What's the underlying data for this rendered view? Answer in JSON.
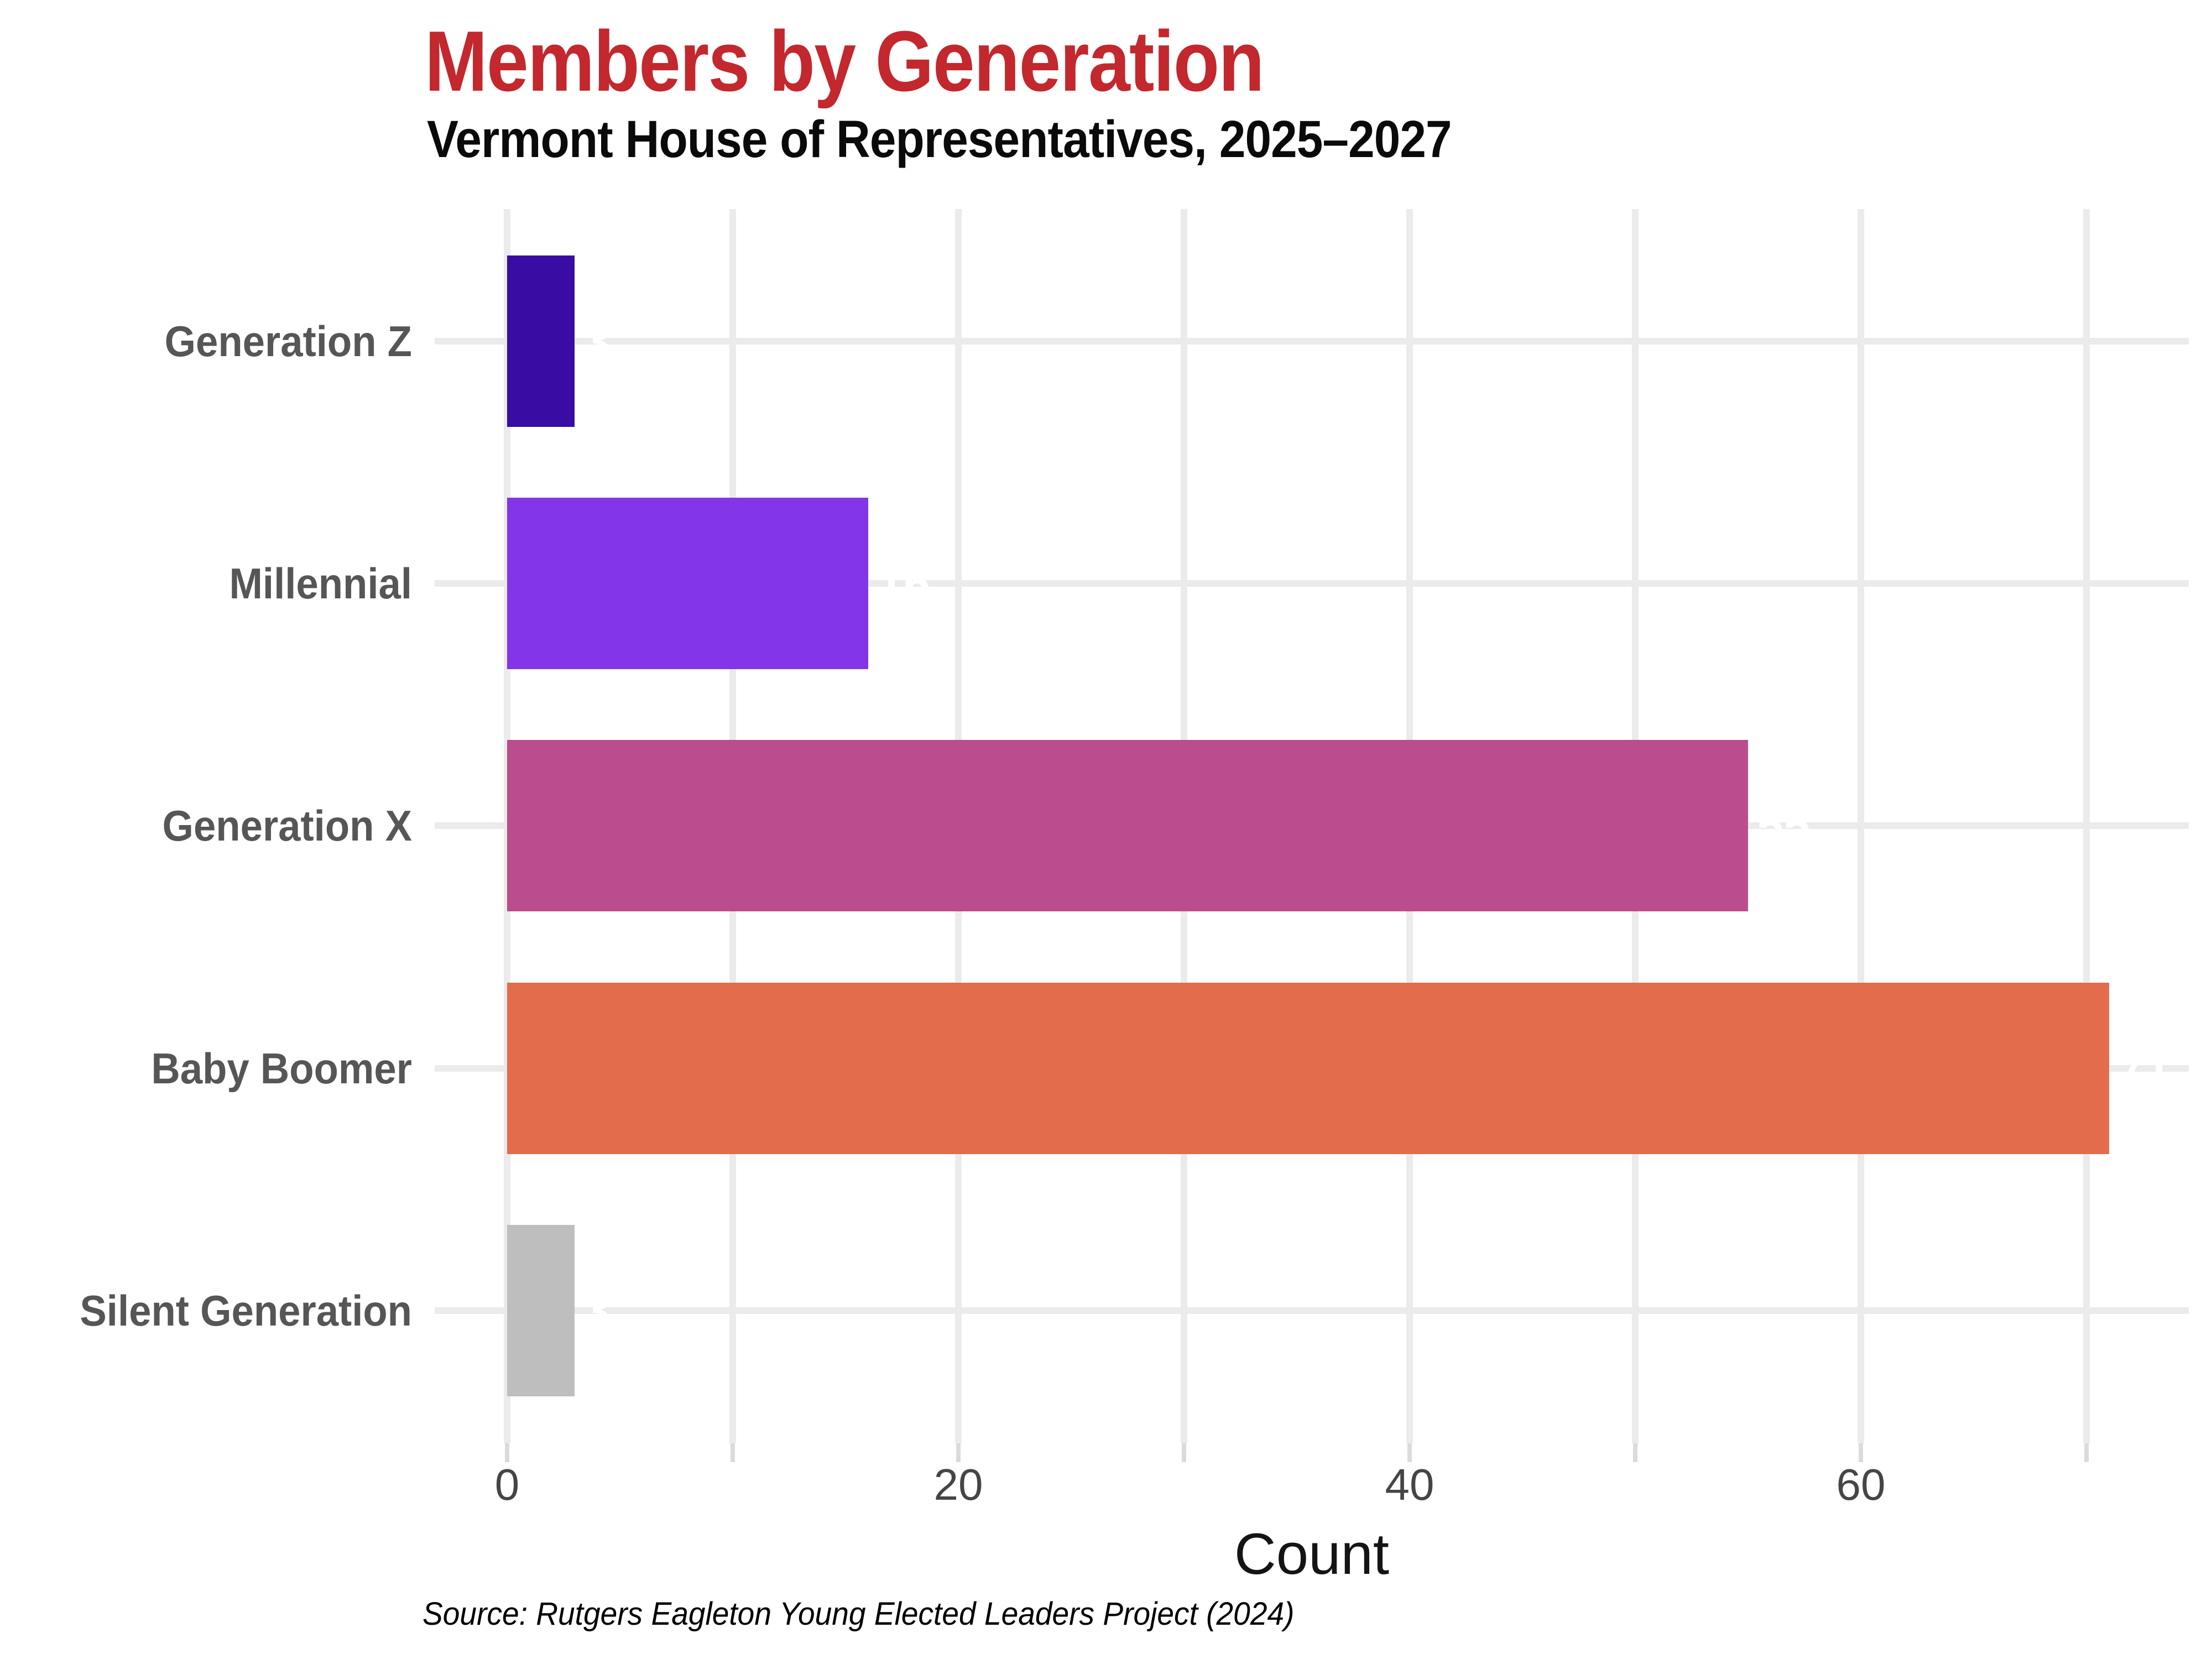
{
  "chart_data": {
    "type": "bar",
    "orientation": "horizontal",
    "title": "Members by Generation",
    "subtitle": "Vermont House of Representatives, 2025–2027",
    "xlabel": "Count",
    "caption": "Source: Rutgers Eagleton Young Elected Leaders Project (2024)",
    "categories": [
      "Generation Z",
      "Millennial",
      "Generation X",
      "Baby Boomer",
      "Silent Generation"
    ],
    "values": [
      3,
      16,
      55,
      71,
      3
    ],
    "bar_value_labels": [
      "3",
      "16",
      "55",
      "71",
      "3"
    ],
    "bar_colors": [
      "#390DA3",
      "#8335E9",
      "#BA4D8C",
      "#E26C4C",
      "#BEBEBE"
    ],
    "x_ticks_labeled": [
      0,
      20,
      40,
      60
    ],
    "x_ticks_minor": [
      0,
      10,
      20,
      30,
      40,
      50,
      60,
      70
    ],
    "xlim": [
      0,
      74.5
    ],
    "grid": "vertical minor+major gridlines every 10; one horizontal gridline per category row",
    "legend": "none",
    "colors": {
      "title": "#C2282D",
      "subtitle": "#0A0A0A",
      "axis_text": "#454545",
      "category_text": "#565656",
      "axis_title_text": "#141414",
      "caption_text": "#000000",
      "gridline": "#EBEBEB",
      "tick_mark": "#DBDBDB",
      "bar_value_label_text": "#FFFFFF",
      "background": "#FFFFFF"
    }
  }
}
